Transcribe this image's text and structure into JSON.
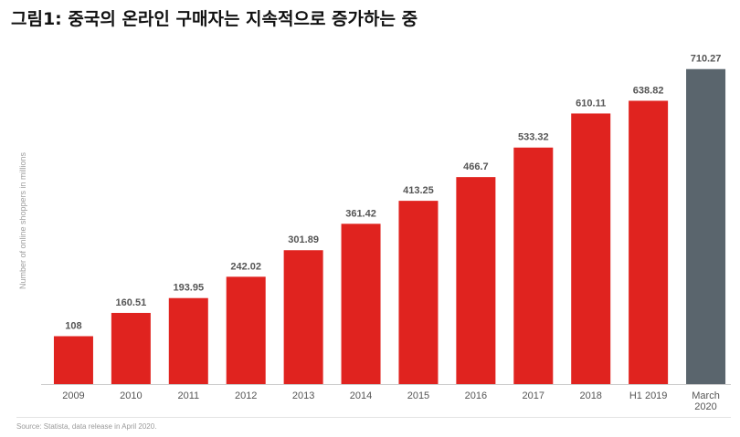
{
  "figure_title": "그림1: 중국의 온라인 구매자는 지속적으로 증가하는 중",
  "source": "Source: Statista, data release in April 2020.",
  "chart_data": {
    "type": "bar",
    "title": "",
    "xlabel": "",
    "ylabel": "Number of online shoppers in millions",
    "categories": [
      "2009",
      "2010",
      "2011",
      "2012",
      "2013",
      "2014",
      "2015",
      "2016",
      "2017",
      "2018",
      "H1 2019",
      "March 2020"
    ],
    "values": [
      108,
      160.51,
      193.95,
      242.02,
      301.89,
      361.42,
      413.25,
      466.7,
      533.32,
      610.11,
      638.82,
      710.27
    ],
    "value_labels": [
      "108",
      "160.51",
      "193.95",
      "242.02",
      "301.89",
      "361.42",
      "413.25",
      "466.7",
      "533.32",
      "610.11",
      "638.82",
      "710.27"
    ],
    "tick_lines": [
      [
        "2009"
      ],
      [
        "2010"
      ],
      [
        "2011"
      ],
      [
        "2012"
      ],
      [
        "2013"
      ],
      [
        "2014"
      ],
      [
        "2015"
      ],
      [
        "2016"
      ],
      [
        "2017"
      ],
      [
        "2018"
      ],
      [
        "H1 2019"
      ],
      [
        "March",
        "2020"
      ]
    ],
    "ylim": [
      0,
      720
    ],
    "grid": false,
    "bar_colors": [
      "#e0231f",
      "#e0231f",
      "#e0231f",
      "#e0231f",
      "#e0231f",
      "#e0231f",
      "#e0231f",
      "#e0231f",
      "#e0231f",
      "#e0231f",
      "#e0231f",
      "#5a656d"
    ],
    "axis_color": "#cccccc"
  }
}
